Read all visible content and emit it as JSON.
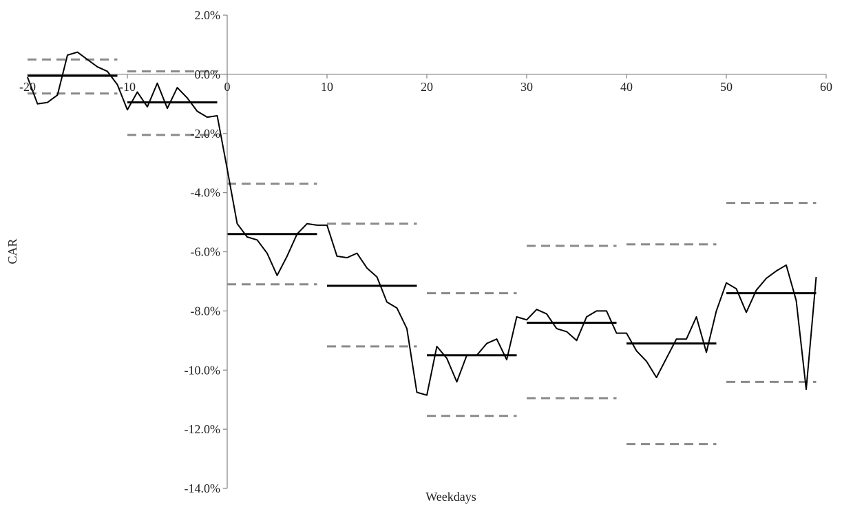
{
  "chart_data": {
    "type": "line",
    "title": "",
    "xlabel": "Weekdays",
    "ylabel": "CAR",
    "xlim": [
      -20,
      60
    ],
    "ylim": [
      -14,
      2
    ],
    "x_ticks": [
      -20,
      -10,
      0,
      10,
      20,
      30,
      40,
      50,
      60
    ],
    "x_tick_labels": [
      "-20",
      "-10",
      "0",
      "10",
      "20",
      "30",
      "40",
      "50",
      "60"
    ],
    "y_ticks": [
      2,
      0,
      -2,
      -4,
      -6,
      -8,
      -10,
      -12,
      -14
    ],
    "y_tick_labels": [
      "2.0%",
      "0.0%",
      "-2.0%",
      "-4.0%",
      "-6.0%",
      "-8.0%",
      "-10.0%",
      "-12.0%",
      "-14.0%"
    ],
    "grid": false,
    "legend": "none",
    "series": [
      {
        "x": [
          -20,
          -19,
          -18,
          -17,
          -16,
          -15,
          -14,
          -13,
          -12,
          -11,
          -10,
          -9,
          -8,
          -7,
          -6,
          -5,
          -4,
          -3,
          -2,
          -1,
          0,
          1,
          2,
          3,
          4,
          5,
          6,
          7,
          8,
          9,
          10,
          11,
          12,
          13,
          14,
          15,
          16,
          17,
          18,
          19,
          20,
          21,
          22,
          23,
          24,
          25,
          26,
          27,
          28,
          29,
          30,
          31,
          32,
          33,
          34,
          35,
          36,
          37,
          38,
          39,
          40,
          41,
          42,
          43,
          44,
          45,
          46,
          47,
          48,
          49,
          50,
          51,
          52,
          53,
          54,
          55,
          56,
          57,
          58,
          59
        ],
        "y": [
          -0.1,
          -1.0,
          -0.95,
          -0.7,
          0.65,
          0.75,
          0.5,
          0.25,
          0.1,
          -0.35,
          -1.2,
          -0.6,
          -1.1,
          -0.3,
          -1.15,
          -0.45,
          -0.8,
          -1.25,
          -1.45,
          -1.4,
          -3.2,
          -5.05,
          -5.5,
          -5.6,
          -6.05,
          -6.8,
          -6.15,
          -5.4,
          -5.05,
          -5.1,
          -5.1,
          -6.15,
          -6.2,
          -6.05,
          -6.55,
          -6.85,
          -7.7,
          -7.9,
          -8.6,
          -10.75,
          -10.85,
          -9.2,
          -9.6,
          -10.4,
          -9.5,
          -9.5,
          -9.1,
          -8.95,
          -9.65,
          -8.2,
          -8.3,
          -7.95,
          -8.1,
          -8.6,
          -8.7,
          -9.0,
          -8.2,
          -8.0,
          -8.0,
          -8.75,
          -8.75,
          -9.35,
          -9.7,
          -10.25,
          -9.6,
          -8.95,
          -8.95,
          -8.2,
          -9.4,
          -8.0,
          -7.05,
          -7.25,
          -8.05,
          -7.3,
          -6.9,
          -6.65,
          -6.45,
          -7.65,
          -10.65,
          -6.85
        ]
      }
    ],
    "period_means": [
      {
        "x": [
          -20,
          -11
        ],
        "y": -0.05
      },
      {
        "x": [
          -10,
          -1
        ],
        "y": -0.95
      },
      {
        "x": [
          0,
          9
        ],
        "y": -5.4
      },
      {
        "x": [
          10,
          19
        ],
        "y": -7.15
      },
      {
        "x": [
          20,
          29
        ],
        "y": -9.5
      },
      {
        "x": [
          30,
          39
        ],
        "y": -8.4
      },
      {
        "x": [
          40,
          49
        ],
        "y": -9.1
      },
      {
        "x": [
          50,
          59
        ],
        "y": -7.4
      }
    ],
    "period_bands": [
      {
        "x": [
          -20,
          -11
        ],
        "y": 0.5
      },
      {
        "x": [
          -20,
          -11
        ],
        "y": -0.65
      },
      {
        "x": [
          -10,
          -1
        ],
        "y": 0.1
      },
      {
        "x": [
          -10,
          -1
        ],
        "y": -2.05
      },
      {
        "x": [
          0,
          9
        ],
        "y": -3.7
      },
      {
        "x": [
          0,
          9
        ],
        "y": -7.1
      },
      {
        "x": [
          10,
          19
        ],
        "y": -5.05
      },
      {
        "x": [
          10,
          19
        ],
        "y": -9.2
      },
      {
        "x": [
          20,
          29
        ],
        "y": -7.4
      },
      {
        "x": [
          20,
          29
        ],
        "y": -11.55
      },
      {
        "x": [
          30,
          39
        ],
        "y": -5.8
      },
      {
        "x": [
          30,
          39
        ],
        "y": -10.95
      },
      {
        "x": [
          40,
          49
        ],
        "y": -5.75
      },
      {
        "x": [
          40,
          49
        ],
        "y": -12.5
      },
      {
        "x": [
          50,
          59
        ],
        "y": -4.35
      },
      {
        "x": [
          50,
          59
        ],
        "y": -10.4
      }
    ]
  }
}
